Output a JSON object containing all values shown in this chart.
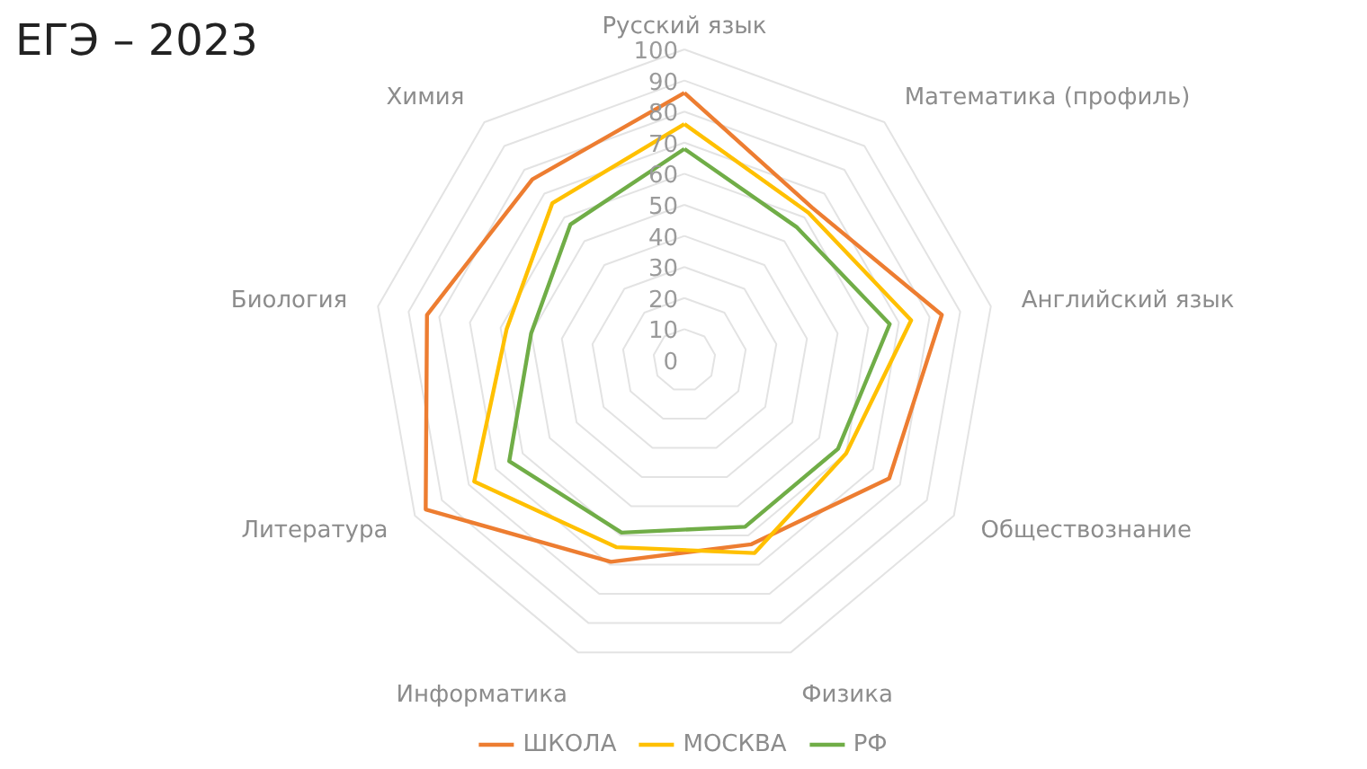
{
  "chart_data": {
    "type": "radar",
    "title": "ЕГЭ – 2023",
    "categories": [
      "Русский язык",
      "Математика (профиль)",
      "Английский язык",
      "Обществознание",
      "Физика",
      "Информатика",
      "Литература",
      "Биология",
      "Химия"
    ],
    "series": [
      {
        "name": "ШКОЛА",
        "color": "#ed7d31",
        "values": [
          86,
          64,
          84,
          76,
          63,
          69,
          96,
          84,
          76
        ]
      },
      {
        "name": "МОСКВА",
        "color": "#ffc000",
        "values": [
          76,
          62,
          74,
          60,
          66,
          64,
          78,
          58,
          66
        ]
      },
      {
        "name": "РФ",
        "color": "#70ad47",
        "values": [
          68,
          56,
          67,
          57,
          57,
          59,
          65,
          50,
          57
        ]
      }
    ],
    "ylim": [
      0,
      100
    ],
    "yticks": [
      0,
      10,
      20,
      30,
      40,
      50,
      60,
      70,
      80,
      90,
      100
    ],
    "grid": true,
    "legend": "bottom"
  }
}
